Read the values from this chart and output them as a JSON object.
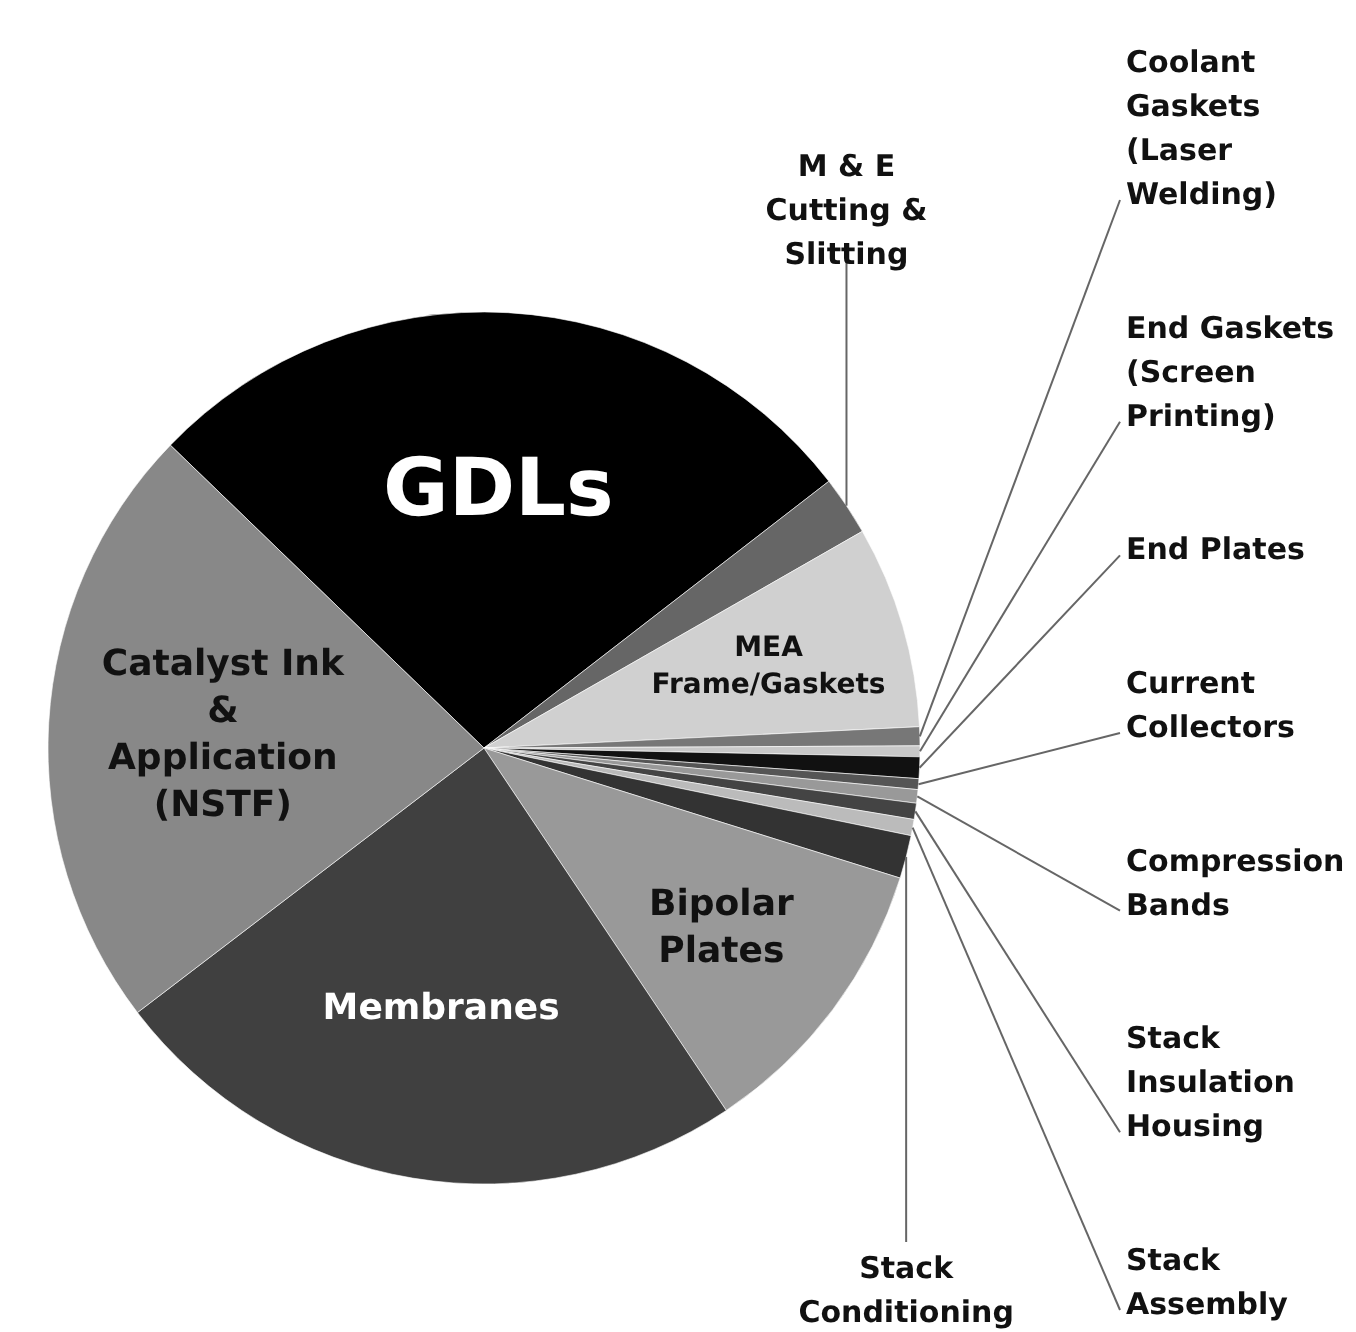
{
  "chart_data": {
    "type": "pie",
    "categories": [
      "GDLs",
      "M & E\nCutting &\nSlitting",
      "MEA\nFrame/Gaskets",
      "Coolant\nGaskets\n(Laser\nWelding)",
      "End Gaskets\n(Screen\nPrinting)",
      "End Plates",
      "Current\nCollectors",
      "Compression\nBands",
      "Stack\nInsulation\nHousing",
      "Stack\nAssembly",
      "Stack\nConditioning",
      "Bipolar\nPlates",
      "Membranes",
      "Catalyst Ink\n&\nApplication\n(NSTF)"
    ],
    "values": [
      27.3,
      2.2,
      7.5,
      0.7,
      0.4,
      0.8,
      0.4,
      0.5,
      0.6,
      0.6,
      1.6,
      10.8,
      24.0,
      22.6
    ],
    "colors": [
      "#000000",
      "#666666",
      "#d0d0d0",
      "#777777",
      "#c8c8c8",
      "#111111",
      "#555555",
      "#999999",
      "#444444",
      "#bbbbbb",
      "#333333",
      "#999999",
      "#404040",
      "#888888"
    ]
  }
}
